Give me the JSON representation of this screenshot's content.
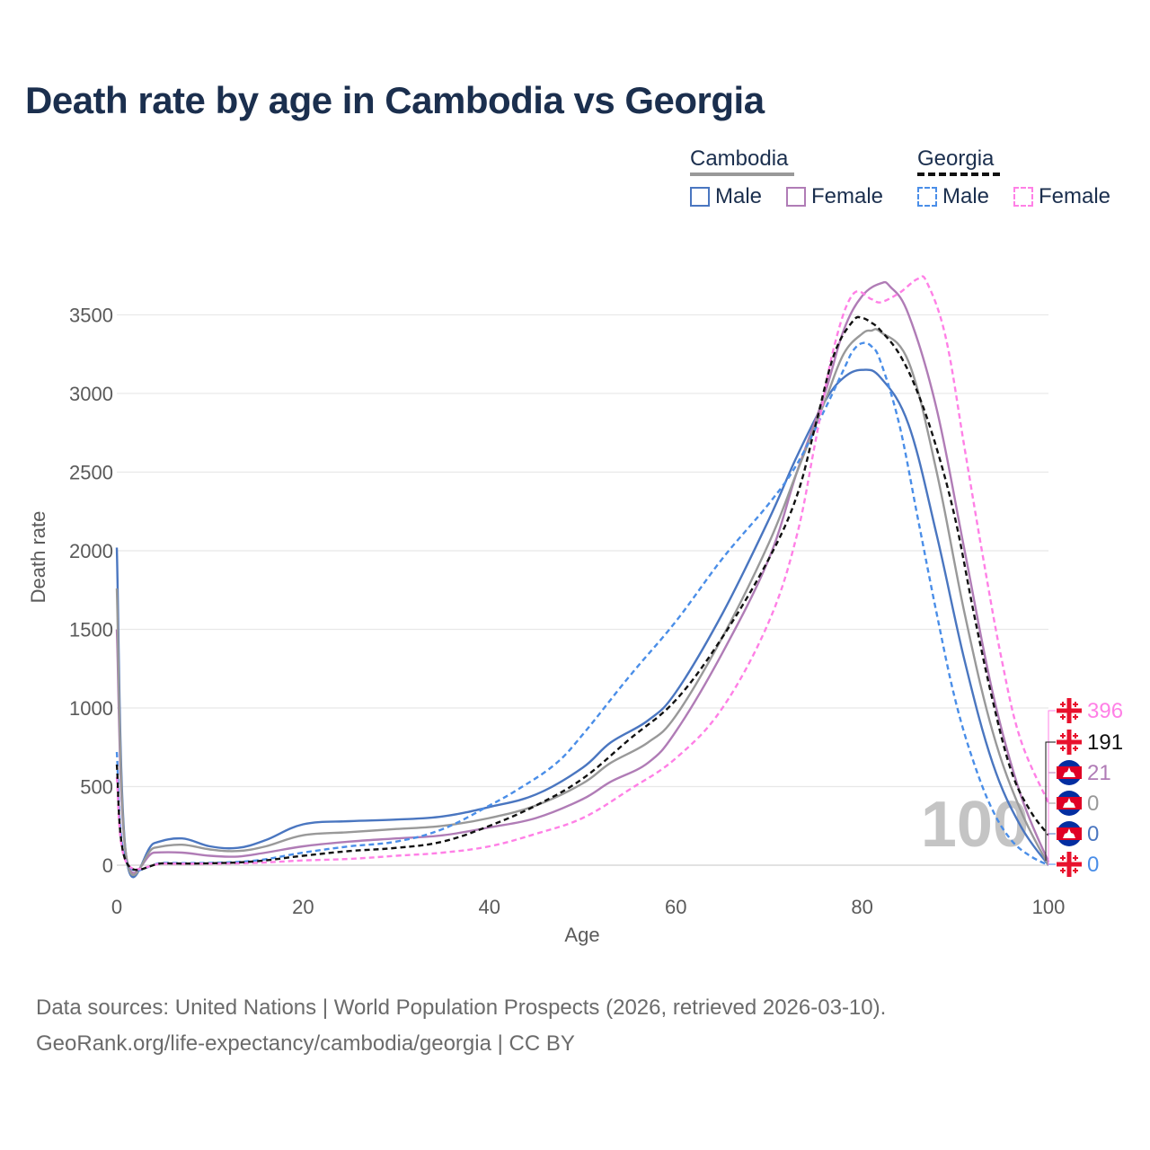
{
  "title": "Death rate by age in Cambodia vs Georgia",
  "legend": {
    "groups": [
      {
        "label": "Cambodia",
        "items": [
          "Male",
          "Female"
        ]
      },
      {
        "label": "Georgia",
        "items": [
          "Male",
          "Female"
        ]
      }
    ]
  },
  "colors": {
    "cambodia_male": "#4a76c0",
    "cambodia_female": "#b07cb6",
    "cambodia_both": "#999999",
    "georgia_male": "#4a8ee8",
    "georgia_female": "#ff80e6",
    "georgia_both": "#111111",
    "title": "#1b2f4e"
  },
  "age_watermark": "100",
  "end_labels": [
    {
      "value": "396",
      "flag": "georgia",
      "color": "#ff80e6"
    },
    {
      "value": "191",
      "flag": "georgia",
      "color": "#111111"
    },
    {
      "value": "21",
      "flag": "cambodia",
      "color": "#b07cb6"
    },
    {
      "value": "0",
      "flag": "cambodia",
      "color": "#999999"
    },
    {
      "value": "0",
      "flag": "cambodia",
      "color": "#4a76c0"
    },
    {
      "value": "0",
      "flag": "georgia",
      "color": "#4a8ee8"
    }
  ],
  "chart_data": {
    "type": "line",
    "title": "Death rate by age in Cambodia vs Georgia",
    "xlabel": "Age",
    "ylabel": "Death rate",
    "xlim": [
      0,
      100
    ],
    "ylim": [
      0,
      3700
    ],
    "xticks": [
      0,
      20,
      40,
      60,
      80,
      100
    ],
    "yticks": [
      0,
      500,
      1000,
      1500,
      2000,
      2500,
      3000,
      3500
    ],
    "grid": true,
    "series": [
      {
        "name": "Cambodia Male",
        "key": "cambodia_male",
        "dash": false,
        "x": [
          0,
          1,
          4,
          7,
          10,
          13,
          16,
          20,
          25,
          30,
          35,
          40,
          45,
          50,
          53,
          57,
          60,
          65,
          70,
          73,
          76,
          78,
          80,
          82,
          85,
          88,
          91,
          94,
          97,
          100
        ],
        "y": [
          2020,
          60,
          140,
          170,
          120,
          110,
          160,
          260,
          280,
          290,
          310,
          370,
          450,
          620,
          780,
          920,
          1100,
          1600,
          2200,
          2600,
          2950,
          3100,
          3150,
          3100,
          2800,
          2100,
          1300,
          650,
          250,
          0
        ]
      },
      {
        "name": "Cambodia Female",
        "key": "cambodia_female",
        "dash": false,
        "x": [
          0,
          1,
          4,
          7,
          10,
          13,
          16,
          20,
          25,
          30,
          35,
          40,
          45,
          50,
          53,
          57,
          60,
          65,
          70,
          73,
          76,
          78,
          80,
          82,
          83,
          85,
          88,
          91,
          94,
          97,
          100
        ],
        "y": [
          1500,
          60,
          80,
          80,
          60,
          55,
          80,
          120,
          150,
          170,
          190,
          240,
          300,
          420,
          530,
          650,
          850,
          1350,
          1950,
          2500,
          3000,
          3400,
          3620,
          3700,
          3680,
          3500,
          2900,
          2000,
          1100,
          450,
          21
        ]
      },
      {
        "name": "Cambodia Both",
        "key": "cambodia_both",
        "dash": false,
        "x": [
          0,
          1,
          4,
          7,
          10,
          13,
          16,
          20,
          25,
          30,
          35,
          40,
          45,
          50,
          53,
          57,
          60,
          65,
          70,
          73,
          76,
          78,
          80,
          81,
          82,
          85,
          88,
          91,
          94,
          97,
          100
        ],
        "y": [
          1760,
          60,
          110,
          130,
          100,
          90,
          120,
          190,
          210,
          230,
          250,
          300,
          380,
          520,
          650,
          780,
          950,
          1450,
          2050,
          2500,
          2950,
          3250,
          3380,
          3400,
          3390,
          3200,
          2500,
          1600,
          850,
          350,
          0
        ]
      },
      {
        "name": "Georgia Male",
        "key": "georgia_male",
        "dash": true,
        "x": [
          0,
          1,
          5,
          10,
          15,
          20,
          25,
          30,
          35,
          40,
          43,
          47,
          50,
          55,
          60,
          65,
          70,
          73,
          76,
          78,
          79,
          80,
          81,
          82,
          84,
          86,
          88,
          90,
          92,
          94,
          96,
          98,
          100
        ],
        "y": [
          720,
          25,
          15,
          15,
          30,
          80,
          120,
          150,
          230,
          380,
          480,
          640,
          830,
          1200,
          1550,
          1950,
          2300,
          2550,
          2900,
          3150,
          3270,
          3320,
          3300,
          3200,
          2800,
          2200,
          1600,
          1050,
          650,
          350,
          160,
          60,
          0
        ]
      },
      {
        "name": "Georgia Female",
        "key": "georgia_female",
        "dash": true,
        "x": [
          0,
          1,
          5,
          10,
          15,
          20,
          25,
          30,
          35,
          40,
          45,
          50,
          55,
          60,
          65,
          70,
          73,
          75,
          77,
          79,
          81,
          82,
          84,
          86,
          87,
          89,
          91,
          93,
          95,
          97,
          100
        ],
        "y": [
          560,
          20,
          10,
          10,
          15,
          30,
          40,
          60,
          80,
          120,
          200,
          300,
          480,
          680,
          1000,
          1550,
          2100,
          2700,
          3300,
          3630,
          3600,
          3580,
          3640,
          3730,
          3700,
          3350,
          2650,
          1950,
          1300,
          800,
          396
        ]
      },
      {
        "name": "Georgia Both",
        "key": "georgia_both",
        "dash": true,
        "x": [
          0,
          1,
          5,
          10,
          15,
          20,
          25,
          30,
          35,
          40,
          45,
          50,
          55,
          60,
          65,
          70,
          73,
          75,
          77,
          79,
          80,
          81,
          82,
          84,
          86,
          88,
          90,
          92,
          94,
          96,
          98,
          100
        ],
        "y": [
          640,
          22,
          12,
          12,
          25,
          60,
          90,
          110,
          150,
          250,
          380,
          550,
          800,
          1050,
          1450,
          1950,
          2350,
          2800,
          3250,
          3460,
          3480,
          3450,
          3400,
          3250,
          3000,
          2650,
          2200,
          1600,
          1050,
          600,
          350,
          191
        ]
      }
    ]
  },
  "footer": {
    "line1": "Data sources: United Nations | World Population Prospects (2026, retrieved 2026-03-10).",
    "line2": "GeoRank.org/life-expectancy/cambodia/georgia | CC BY"
  }
}
